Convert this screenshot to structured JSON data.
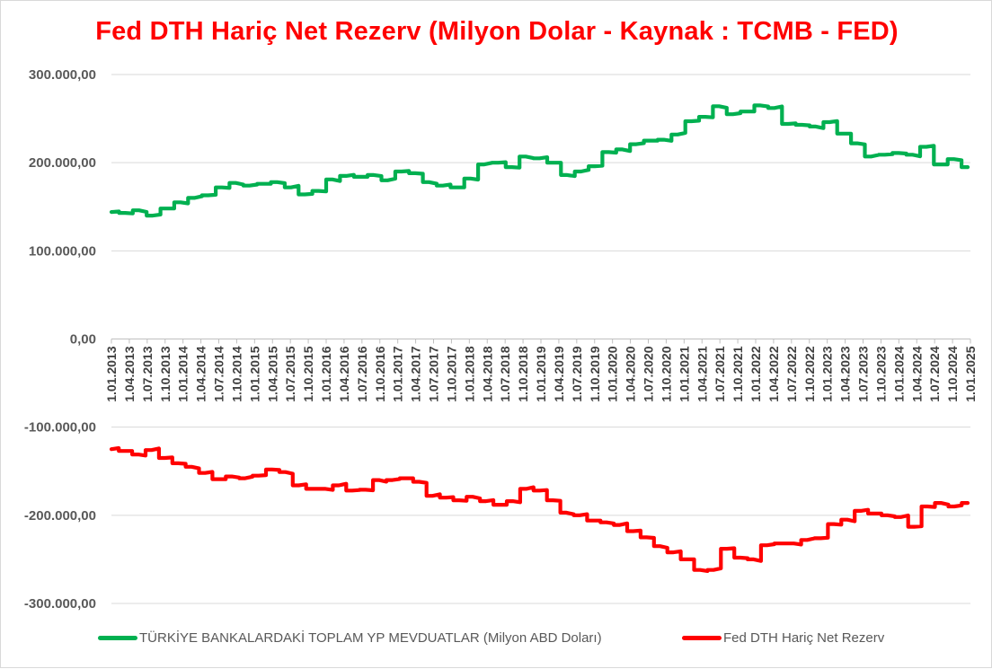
{
  "chart_data": {
    "type": "line",
    "title": "Fed DTH Hariç Net Rezerv (Milyon Dolar - Kaynak : TCMB - FED)",
    "xlabel": "",
    "ylabel": "",
    "ylim": [
      -300000,
      300000
    ],
    "y_ticks": [
      300000,
      200000,
      100000,
      0,
      -100000,
      -200000,
      -300000
    ],
    "y_tick_labels": [
      "300.000,00",
      "200.000,00",
      "100.000,00",
      "0,00",
      "-100.000,00",
      "-200.000,00",
      "-300.000,00"
    ],
    "x_tick_labels": [
      "1.01.2013",
      "1.04.2013",
      "1.07.2013",
      "1.10.2013",
      "1.01.2014",
      "1.04.2014",
      "1.07.2014",
      "1.10.2014",
      "1.01.2015",
      "1.04.2015",
      "1.07.2015",
      "1.10.2015",
      "1.01.2016",
      "1.04.2016",
      "1.07.2016",
      "1.10.2016",
      "1.01.2017",
      "1.04.2017",
      "1.07.2017",
      "1.10.2017",
      "1.01.2018",
      "1.04.2018",
      "1.07.2018",
      "1.10.2018",
      "1.01.2019",
      "1.04.2019",
      "1.07.2019",
      "1.10.2019",
      "1.01.2020",
      "1.04.2020",
      "1.07.2020",
      "1.10.2020",
      "1.01.2021",
      "1.04.2021",
      "1.07.2021",
      "1.10.2021",
      "1.01.2022",
      "1.04.2022",
      "1.07.2022",
      "1.10.2022",
      "1.01.2023",
      "1.04.2023",
      "1.07.2023",
      "1.10.2023",
      "1.01.2024",
      "1.04.2024",
      "1.07.2024",
      "1.10.2024",
      "1.01.2025"
    ],
    "grid": true,
    "legend_position": "bottom",
    "series": [
      {
        "name": "TÜRKİYE BANKALARDAKİ TOPLAM YP MEVDUATLAR (Milyon ABD Doları)",
        "color": "#00b050",
        "values": [
          144000,
          143000,
          146000,
          140000,
          148000,
          155000,
          160000,
          163000,
          172000,
          177000,
          174000,
          176000,
          178000,
          172000,
          164000,
          168000,
          181000,
          185000,
          184000,
          186000,
          180000,
          190000,
          188000,
          178000,
          174000,
          172000,
          182000,
          198000,
          200000,
          195000,
          207000,
          205000,
          200000,
          186000,
          190000,
          196000,
          212000,
          215000,
          221000,
          225000,
          226000,
          232000,
          247000,
          252000,
          264000,
          255000,
          258000,
          265000,
          262000,
          244000,
          243000,
          241000,
          246000,
          233000,
          222000,
          207000,
          209000,
          211000,
          209000,
          218000,
          198000,
          204000,
          195000
        ]
      },
      {
        "name": "Fed DTH Hariç Net Rezerv",
        "color": "#ff0000",
        "values": [
          -125000,
          -127000,
          -131000,
          -126000,
          -135000,
          -141000,
          -145000,
          -152000,
          -159000,
          -156000,
          -158000,
          -155000,
          -148000,
          -151000,
          -166000,
          -170000,
          -170000,
          -166000,
          -172000,
          -171000,
          -160000,
          -160000,
          -158000,
          -162000,
          -178000,
          -180000,
          -183000,
          -179000,
          -184000,
          -188000,
          -184000,
          -170000,
          -172000,
          -183000,
          -197000,
          -200000,
          -206000,
          -208000,
          -211000,
          -218000,
          -225000,
          -235000,
          -242000,
          -250000,
          -262000,
          -262000,
          -238000,
          -248000,
          -250000,
          -234000,
          -232000,
          -232000,
          -228000,
          -226000,
          -210000,
          -205000,
          -195000,
          -198000,
          -200000,
          -202000,
          -213000,
          -190000,
          -186000,
          -190000,
          -186000
        ]
      }
    ]
  }
}
